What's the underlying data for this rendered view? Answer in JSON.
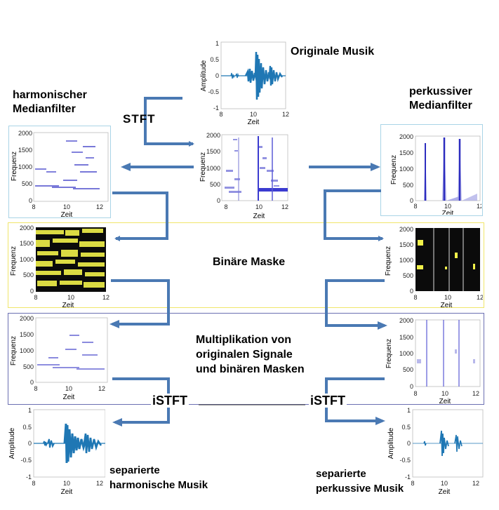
{
  "titles": {
    "original_music": "Originale Musik",
    "harmonic_filter": "harmonischer\nMedianfilter",
    "percussive_filter": "perkussiver\nMedianfilter",
    "stft": "STFT",
    "binary_mask": "Binäre Maske",
    "multiplication": "Multiplikation von\noriginalen Signale\nund binären Masken",
    "istft_left": "iSTFT",
    "istft_right": "iSTFT",
    "separated_harmonic": "separierte\nharmonische Musik",
    "separated_percussive": "separierte\nperkussive Musik"
  },
  "axes": {
    "amplitude": "Amplitude",
    "frequency": "Frequenz",
    "time": "Zeit",
    "time_ticks": [
      "8",
      "10",
      "12"
    ],
    "freq_ticks": [
      "2000",
      "1500",
      "1000",
      "500",
      "0"
    ],
    "amp_ticks": [
      "1",
      "0.5",
      "0",
      "-0.5",
      "-1"
    ]
  },
  "colors": {
    "arrow": "#4a79b3",
    "wave": "#1f77b4",
    "frame_top": "#a9d4e6",
    "frame_mask": "#f0e66a",
    "frame_mult": "#6b6fb2",
    "mask_bg": "#0b0b0b",
    "mask_yellow": "#f2f24a"
  }
}
